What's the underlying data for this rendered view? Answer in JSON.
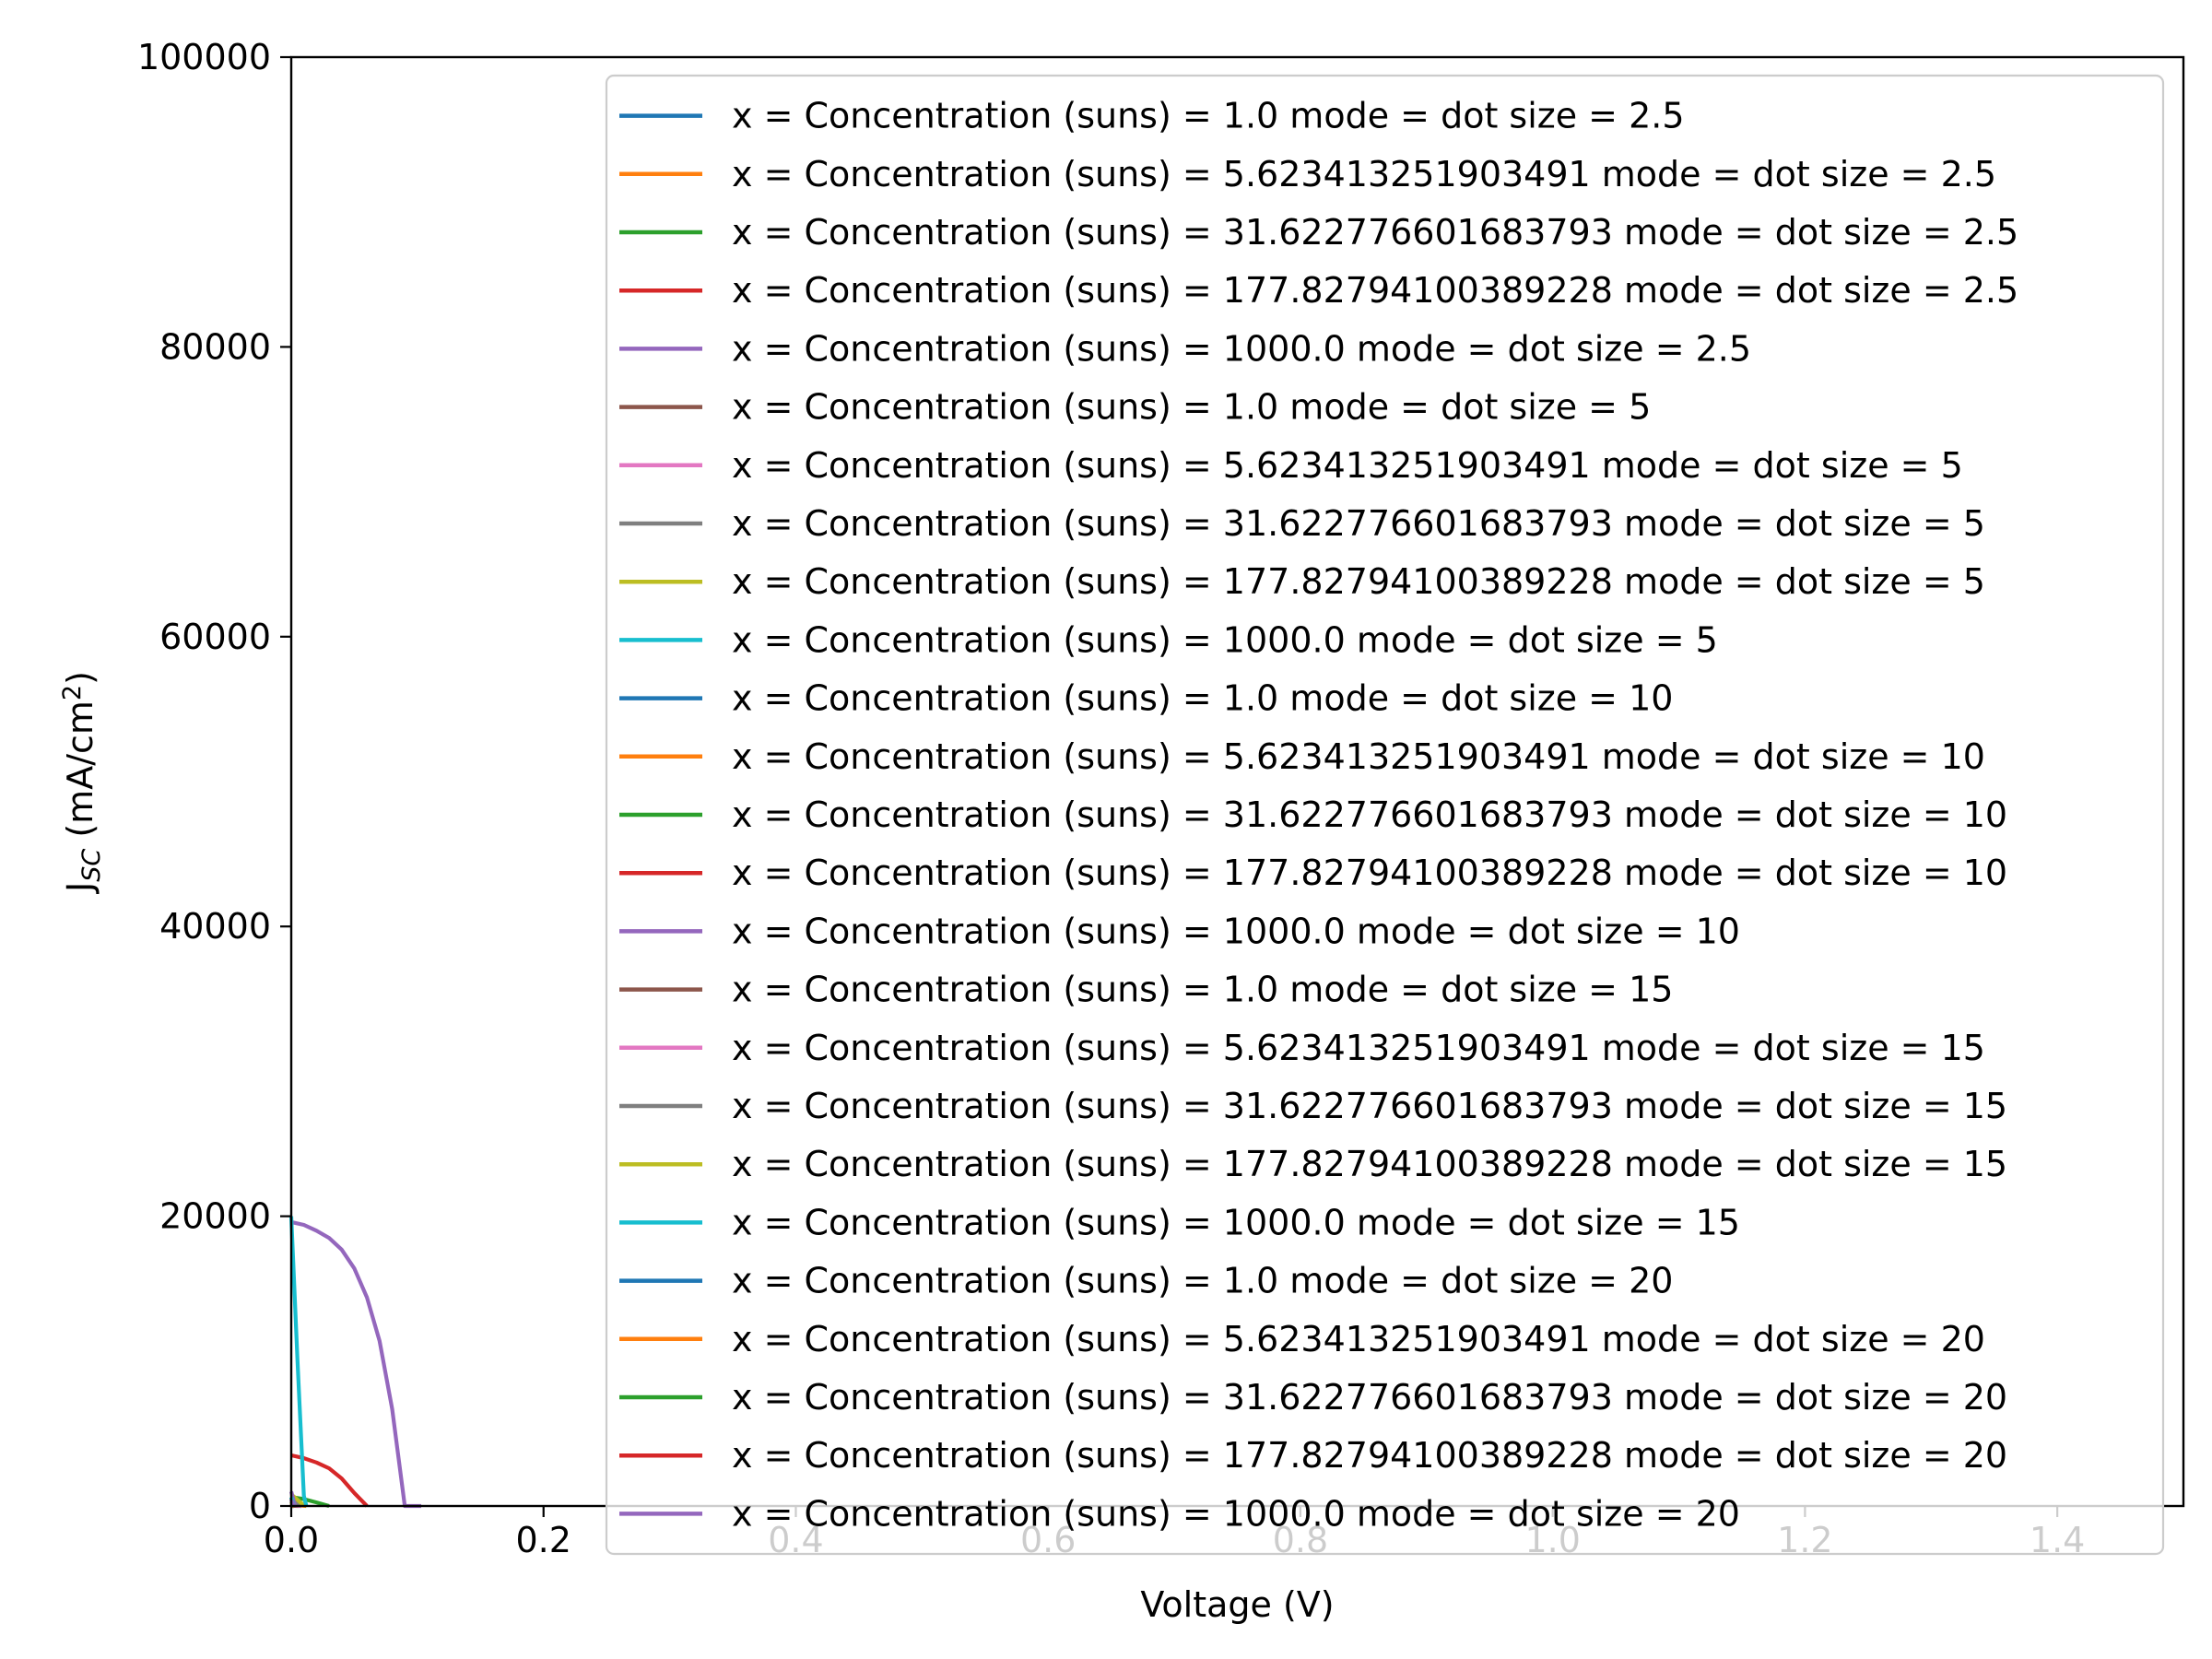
{
  "chart_data": {
    "type": "line",
    "title": "",
    "xlabel": "Voltage (V)",
    "ylabel": {
      "base": "J",
      "subscript": "SC",
      "unit_prefix": " (mA/cm",
      "superscript": "2",
      "unit_suffix": ")"
    },
    "xlim": [
      0,
      1.5
    ],
    "ylim": [
      0,
      100000
    ],
    "xticks": [
      0.0,
      0.2,
      0.4,
      0.6,
      0.8,
      1.0,
      1.2,
      1.4
    ],
    "xtick_labels": [
      "0.0",
      "0.2",
      "0.4",
      "0.6",
      "0.8",
      "1.0",
      "1.2",
      "1.4"
    ],
    "yticks": [
      0,
      20000,
      40000,
      60000,
      80000,
      100000
    ],
    "ytick_labels": [
      "0",
      "20000",
      "40000",
      "60000",
      "80000",
      "100000"
    ],
    "grid": false,
    "legend_position": "top-right",
    "colors": [
      "#1f77b4",
      "#ff7f0e",
      "#2ca02c",
      "#d62728",
      "#9467bd",
      "#8c564b",
      "#e377c2",
      "#7f7f7f",
      "#bcbd22",
      "#17becf"
    ],
    "series": [
      {
        "name": "x = Concentration (suns) = 1.0 mode = dot size = 2.5",
        "color": "#1f77b4",
        "x": [
          0.0,
          0.004,
          0.008
        ],
        "y": [
          20,
          10,
          0
        ]
      },
      {
        "name": "x = Concentration (suns) = 5.623413251903491 mode = dot size = 2.5",
        "color": "#ff7f0e",
        "x": [
          0.0,
          0.006,
          0.012
        ],
        "y": [
          110,
          60,
          0
        ]
      },
      {
        "name": "x = Concentration (suns) = 31.622776601683793 mode = dot size = 2.5",
        "color": "#2ca02c",
        "x": [
          0.0,
          0.01,
          0.02,
          0.03
        ],
        "y": [
          620,
          480,
          250,
          0
        ]
      },
      {
        "name": "x = Concentration (suns) = 177.82794100389228 mode = dot size = 2.5",
        "color": "#d62728",
        "x": [
          0.0,
          0.01,
          0.02,
          0.03,
          0.04,
          0.05,
          0.06
        ],
        "y": [
          3500,
          3300,
          3000,
          2600,
          1900,
          900,
          0
        ]
      },
      {
        "name": "x = Concentration (suns) = 1000.0 mode = dot size = 2.5",
        "color": "#9467bd",
        "x": [
          0.0,
          0.01,
          0.02,
          0.03,
          0.04,
          0.05,
          0.06,
          0.07,
          0.08,
          0.09,
          0.1,
          0.103
        ],
        "y": [
          19600,
          19400,
          19000,
          18500,
          17700,
          16400,
          14400,
          11400,
          6700,
          0,
          0,
          0
        ]
      },
      {
        "name": "x = Concentration (suns) = 1.0 mode = dot size = 5",
        "color": "#8c564b",
        "x": [
          0.0,
          0.003,
          0.006
        ],
        "y": [
          15,
          8,
          0
        ]
      },
      {
        "name": "x = Concentration (suns) = 5.623413251903491 mode = dot size = 5",
        "color": "#e377c2",
        "x": [
          0.0,
          0.004,
          0.008
        ],
        "y": [
          80,
          40,
          0
        ]
      },
      {
        "name": "x = Concentration (suns) = 31.622776601683793 mode = dot size = 5",
        "color": "#7f7f7f",
        "x": [
          0.0,
          0.004,
          0.008
        ],
        "y": [
          450,
          220,
          0
        ]
      },
      {
        "name": "x = Concentration (suns) = 177.82794100389228 mode = dot size = 5",
        "color": "#bcbd22",
        "x": [
          0.0,
          0.004,
          0.008,
          0.012
        ],
        "y": [
          800,
          500,
          200,
          0
        ]
      },
      {
        "name": "x = Concentration (suns) = 1000.0 mode = dot size = 5",
        "color": "#17becf",
        "x": [
          0.0,
          0.005,
          0.01,
          0.012
        ],
        "y": [
          20000,
          10000,
          700,
          0
        ]
      },
      {
        "name": "x = Concentration (suns) = 1.0 mode = dot size = 10",
        "color": "#1f77b4",
        "x": [
          0.0,
          0.002
        ],
        "y": [
          10,
          0
        ]
      },
      {
        "name": "x = Concentration (suns) = 5.623413251903491 mode = dot size = 10",
        "color": "#ff7f0e",
        "x": [
          0.0,
          0.002
        ],
        "y": [
          50,
          0
        ]
      },
      {
        "name": "x = Concentration (suns) = 31.622776601683793 mode = dot size = 10",
        "color": "#2ca02c",
        "x": [
          0.0,
          0.002
        ],
        "y": [
          300,
          0
        ]
      },
      {
        "name": "x = Concentration (suns) = 177.82794100389228 mode = dot size = 10",
        "color": "#d62728",
        "x": [
          0.0,
          0.002
        ],
        "y": [
          500,
          0
        ]
      },
      {
        "name": "x = Concentration (suns) = 1000.0 mode = dot size = 10",
        "color": "#9467bd",
        "x": [
          0.0,
          0.003
        ],
        "y": [
          1000,
          0
        ]
      },
      {
        "name": "x = Concentration (suns) = 1.0 mode = dot size = 15",
        "color": "#8c564b",
        "x": [
          0.0,
          0.002
        ],
        "y": [
          5,
          0
        ]
      },
      {
        "name": "x = Concentration (suns) = 5.623413251903491 mode = dot size = 15",
        "color": "#e377c2",
        "x": [
          0.0,
          0.002
        ],
        "y": [
          30,
          0
        ]
      },
      {
        "name": "x = Concentration (suns) = 31.622776601683793 mode = dot size = 15",
        "color": "#7f7f7f",
        "x": [
          0.0,
          0.002
        ],
        "y": [
          150,
          0
        ]
      },
      {
        "name": "x = Concentration (suns) = 177.82794100389228 mode = dot size = 15",
        "color": "#bcbd22",
        "x": [
          0.0,
          0.002
        ],
        "y": [
          300,
          0
        ]
      },
      {
        "name": "x = Concentration (suns) = 1000.0 mode = dot size = 15",
        "color": "#17becf",
        "x": [
          0.0,
          0.002
        ],
        "y": [
          600,
          0
        ]
      },
      {
        "name": "x = Concentration (suns) = 1.0 mode = dot size = 20",
        "color": "#1f77b4",
        "x": [
          0.0,
          0.002
        ],
        "y": [
          3,
          0
        ]
      },
      {
        "name": "x = Concentration (suns) = 5.623413251903491 mode = dot size = 20",
        "color": "#ff7f0e",
        "x": [
          0.0,
          0.002
        ],
        "y": [
          20,
          0
        ]
      },
      {
        "name": "x = Concentration (suns) = 31.622776601683793 mode = dot size = 20",
        "color": "#2ca02c",
        "x": [
          0.0,
          0.002
        ],
        "y": [
          100,
          0
        ]
      },
      {
        "name": "x = Concentration (suns) = 177.82794100389228 mode = dot size = 20",
        "color": "#d62728",
        "x": [
          0.0,
          0.002
        ],
        "y": [
          200,
          0
        ]
      },
      {
        "name": "x = Concentration (suns) = 1000.0 mode = dot size = 20",
        "color": "#9467bd",
        "x": [
          0.0,
          0.002
        ],
        "y": [
          400,
          0
        ]
      }
    ]
  }
}
